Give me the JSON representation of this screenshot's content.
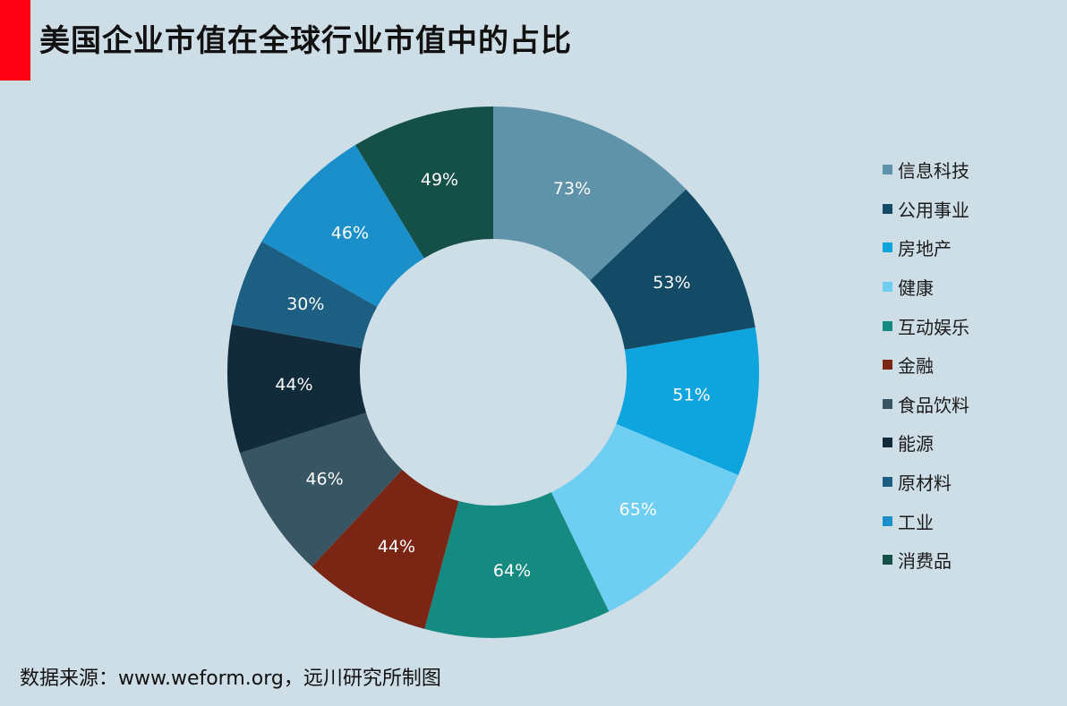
{
  "header": {
    "title": "美国企业市值在全球行业市值中的占比",
    "accent_color": "#ff0014"
  },
  "chart_data": {
    "type": "pie",
    "donut": true,
    "legend_position": "right",
    "categories": [
      "信息科技",
      "公用事业",
      "房地产",
      "健康",
      "互动娱乐",
      "金融",
      "食品饮料",
      "能源",
      "原材料",
      "工业",
      "消费品"
    ],
    "values": [
      73,
      53,
      51,
      65,
      64,
      44,
      46,
      44,
      30,
      46,
      49
    ],
    "labels": [
      "73%",
      "53%",
      "51%",
      "65%",
      "64%",
      "44%",
      "46%",
      "44%",
      "30%",
      "46%",
      "49%"
    ],
    "colors": [
      "#5f93a9",
      "#134a66",
      "#0ea5de",
      "#6fcff3",
      "#158a80",
      "#7b2515",
      "#375563",
      "#112b3b",
      "#1c5f82",
      "#1a8fca",
      "#145048"
    ]
  },
  "footer": {
    "source": "数据来源：www.weform.org，远川研究所制图"
  }
}
